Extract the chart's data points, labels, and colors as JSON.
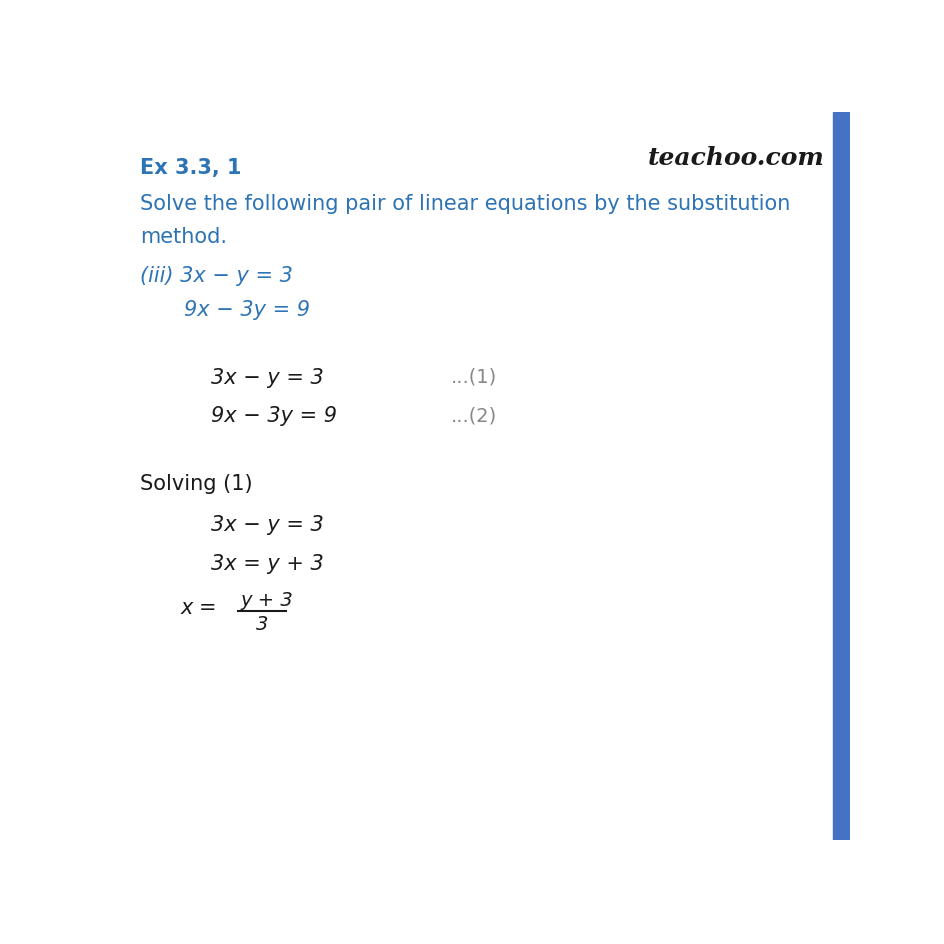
{
  "background_color": "#ffffff",
  "right_border_color": "#4472c4",
  "teachoo_text": "teachoo.com",
  "blue_color": "#2e74b5",
  "black_color": "#1a1a1a",
  "gray_color": "#888888",
  "title": "Ex 3.3, 1",
  "question_line1": "Solve the following pair of linear equations by the substitution",
  "question_line2": "method.",
  "eq_label": "(iii)",
  "eq1_blue": "3x − y = 3",
  "eq2_blue": "9x − 3y = 9",
  "eq1_black": "3x − y = 3",
  "eq1_num": "...(1)",
  "eq2_black": "9x − 3y = 9",
  "eq2_num": "...(2)",
  "solving_label": "Solving (1)",
  "step1": "3x − y = 3",
  "step2": "3x = y + 3",
  "step3_lhs": "x = ",
  "step3_num": "y + 3",
  "step3_den": "3"
}
